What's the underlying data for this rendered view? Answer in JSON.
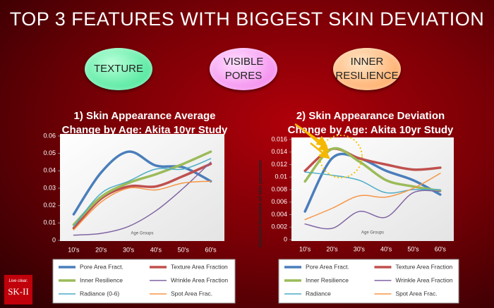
{
  "header": {
    "title": "TOP 3 FEATURES WITH BIGGEST SKIN DEVIATION"
  },
  "badges": [
    "TEXTURE",
    "VISIBLE PORES",
    "INNER RESILIENCE"
  ],
  "logo": {
    "tagline": "Live clear.",
    "brand": "SK-II"
  },
  "chart_data": [
    {
      "type": "line",
      "title": "1) Skin Appearance Average Change by Age: Akita 10yr Study",
      "x_label": "Age Groups",
      "categories": [
        "10's",
        "20's",
        "30's",
        "40's",
        "50's",
        "60's"
      ],
      "ylim": [
        0,
        0.06
      ],
      "yticks": [
        0,
        0.01,
        0.02,
        0.03,
        0.04,
        0.05,
        0.06
      ],
      "series": [
        {
          "name": "Pore Area Fract.",
          "color": "#4a7ebb",
          "values": [
            0.015,
            0.039,
            0.051,
            0.043,
            0.042,
            0.034
          ]
        },
        {
          "name": "Texture Area Fraction",
          "color": "#c0504d",
          "values": [
            0.007,
            0.024,
            0.031,
            0.031,
            0.037,
            0.044
          ]
        },
        {
          "name": "Inner Resilience",
          "color": "#9bbb59",
          "values": [
            0.009,
            0.025,
            0.033,
            0.038,
            0.044,
            0.051
          ]
        },
        {
          "name": "Wrinkle Area Fraction",
          "color": "#8064a2",
          "values": [
            0.003,
            0.004,
            0.008,
            0.017,
            0.03,
            0.045
          ]
        },
        {
          "name": "Radiance (0-6)",
          "color": "#4bacc6",
          "values": [
            0.008,
            0.027,
            0.034,
            0.041,
            0.041,
            0.047
          ]
        },
        {
          "name": "Spot Area Frac.",
          "color": "#f79646",
          "values": [
            0.006,
            0.022,
            0.03,
            0.029,
            0.033,
            0.034
          ]
        }
      ]
    },
    {
      "type": "line",
      "title": "2) Skin Appearance Deviation Change by Age: Akita 10yr Study",
      "x_label": "Age Groups",
      "y_label": "Standard Deviation of skin parameter",
      "categories": [
        "10's",
        "20's",
        "30's",
        "40's",
        "50's",
        "60's"
      ],
      "ylim": [
        0,
        0.016
      ],
      "yticks": [
        0,
        0.002,
        0.004,
        0.006,
        0.008,
        0.01,
        0.012,
        0.014,
        0.016
      ],
      "series": [
        {
          "name": "Pore Area Fract.",
          "color": "#4a7ebb",
          "values": [
            0.0045,
            0.013,
            0.013,
            0.011,
            0.0095,
            0.0072
          ]
        },
        {
          "name": "Texture Area Fraction",
          "color": "#c0504d",
          "values": [
            0.011,
            0.0145,
            0.013,
            0.012,
            0.0112,
            0.0115
          ]
        },
        {
          "name": "Inner Resilience",
          "color": "#9bbb59",
          "values": [
            0.0093,
            0.0145,
            0.0125,
            0.0095,
            0.0085,
            0.0078
          ]
        },
        {
          "name": "Wrinkle Area Fraction",
          "color": "#8064a2",
          "values": [
            0.0025,
            0.0018,
            0.0045,
            0.0036,
            0.0075,
            0.0077
          ]
        },
        {
          "name": "Radiance",
          "color": "#4bacc6",
          "values": [
            0.0108,
            0.0103,
            0.0095,
            0.0075,
            0.008,
            0.008
          ]
        },
        {
          "name": "Spot Area Frac.",
          "color": "#f79646",
          "values": [
            0.0032,
            0.005,
            0.007,
            0.0068,
            0.0082,
            0.0106
          ]
        }
      ]
    }
  ]
}
